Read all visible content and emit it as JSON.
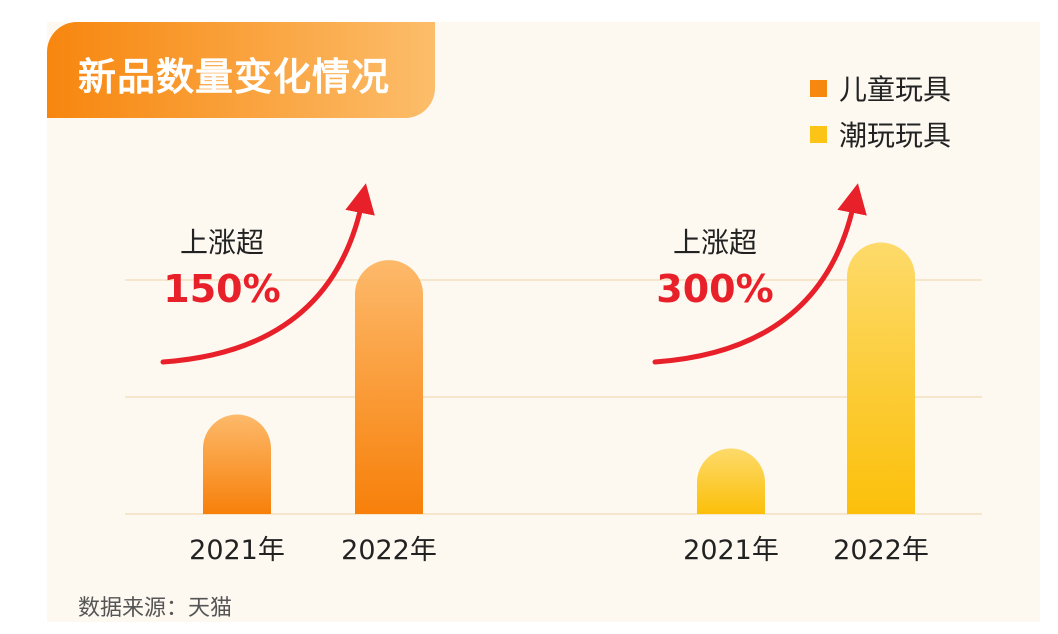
{
  "chart_data": {
    "type": "bar",
    "title": "新品数量变化情况",
    "categories": [
      "2021年",
      "2022年"
    ],
    "series": [
      {
        "name": "儿童玩具",
        "values": [
          0.85,
          2.17
        ],
        "color": "#f7880f",
        "growth_label": "上涨超",
        "growth_value": "150%"
      },
      {
        "name": "潮玩玩具",
        "values": [
          0.56,
          2.32
        ],
        "color": "#fcc417",
        "growth_label": "上涨超",
        "growth_value": "300%"
      }
    ],
    "xlabel": "",
    "ylabel": "",
    "ylim": [
      0,
      2.4
    ],
    "grid": true,
    "legend": "top-right",
    "source": "数据来源：天猫",
    "accent_color": "#e8202a"
  }
}
